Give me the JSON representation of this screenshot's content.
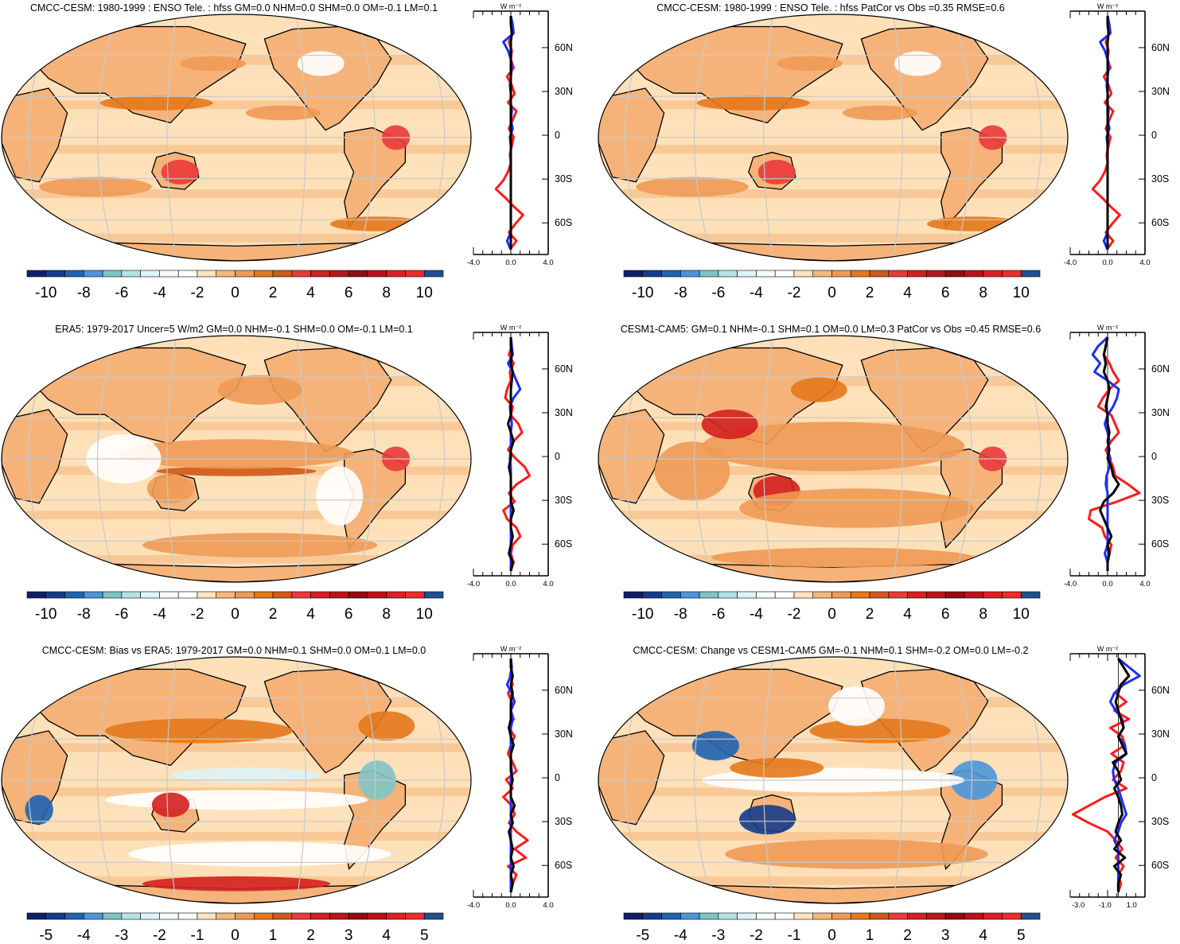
{
  "colors": {
    "palette": [
      "#0e1e6b",
      "#153c8c",
      "#1f63b3",
      "#4b96d9",
      "#7fc4c4",
      "#b3e2e6",
      "#def3f5",
      "#f5fbfd",
      "#ffffff",
      "#fde4c0",
      "#f4b77c",
      "#ee9a55",
      "#e4781c",
      "#cf5a1a",
      "#ea3a3a",
      "#d42020",
      "#b8161c",
      "#920c12",
      "#c0101a",
      "#e01e26",
      "#f02a2a",
      "#1f4f8f"
    ],
    "ocean_base": "#fde0b8",
    "land_base": "#f5b37a",
    "coast": "#000000",
    "grid": "#c8c8c8",
    "line_red": "#ff1a1a",
    "line_blue": "#1a2eff",
    "line_black": "#000000"
  },
  "panels": [
    {
      "title": "CMCC-CESM: 1980-1999 : ENSO Tele. : hfss GM=0.0 NHM=0.0 SHM=0.0 OM=-0.1 LM=0.1",
      "colorbar_labels": [
        "-10",
        "-8",
        "-6",
        "-4",
        "-2",
        "0",
        "2",
        "4",
        "6",
        "8",
        "10"
      ],
      "profile": {
        "unit": "W m⁻²",
        "x_ticks": [
          "-4.0",
          "0.0",
          "4.0"
        ],
        "xlim": [
          -4,
          4
        ],
        "y_ticks": [
          "60N",
          "30N",
          "0",
          "30S",
          "60S"
        ],
        "series": {
          "red": [
            0.0,
            0.1,
            0.2,
            -0.2,
            0.1,
            0.0,
            0.3,
            -0.4,
            0.1,
            0.4,
            -0.3,
            0.6,
            0.2,
            -0.2,
            0.3,
            0.1,
            -0.1,
            0.0,
            -0.3,
            -0.8,
            -1.6,
            -0.6,
            0.3,
            1.3,
            0.5,
            -0.2,
            0.6,
            -0.1
          ],
          "blue": [
            0.0,
            0.2,
            0.3,
            -0.8,
            -0.3,
            0.0,
            0.1,
            0.0,
            -0.1,
            0.0,
            0.0,
            0.1,
            0.0,
            0.2,
            -0.1,
            0.0,
            0.0,
            0.0,
            0.0,
            0.0,
            0.0,
            0.0,
            0.0,
            0.0,
            0.0,
            0.0,
            -0.4,
            0.0
          ],
          "black": [
            0.0,
            0.0,
            0.1,
            0.0,
            0.0,
            0.0,
            0.0,
            0.0,
            0.0,
            0.0,
            0.0,
            0.0,
            0.0,
            0.0,
            0.0,
            0.0,
            0.0,
            0.0,
            0.0,
            0.0,
            0.0,
            0.0,
            0.0,
            0.0,
            0.0,
            0.0,
            0.0,
            0.0
          ]
        }
      }
    },
    {
      "title": "CMCC-CESM: 1980-1999 : ENSO Tele. : hfss PatCor vs Obs =0.35 RMSE=0.6",
      "colorbar_labels": [
        "-10",
        "-8",
        "-6",
        "-4",
        "-2",
        "0",
        "2",
        "4",
        "6",
        "8",
        "10"
      ],
      "profile": {
        "unit": "W m⁻²",
        "x_ticks": [
          "-4.0",
          "0.0",
          "4.0"
        ],
        "xlim": [
          -4,
          4
        ],
        "y_ticks": [
          "60N",
          "30N",
          "0",
          "30S",
          "60S"
        ],
        "series": {
          "red": [
            0.0,
            0.1,
            0.2,
            -0.2,
            0.1,
            0.0,
            0.3,
            -0.4,
            0.1,
            0.4,
            -0.3,
            0.6,
            0.2,
            -0.2,
            0.3,
            0.1,
            -0.1,
            0.0,
            -0.3,
            -0.8,
            -1.6,
            -0.6,
            0.3,
            1.3,
            0.5,
            -0.2,
            0.6,
            -0.1
          ],
          "blue": [
            0.0,
            0.2,
            0.3,
            -0.8,
            -0.3,
            0.0,
            0.1,
            0.0,
            -0.1,
            0.0,
            0.0,
            0.1,
            0.0,
            0.2,
            -0.1,
            0.0,
            0.0,
            0.0,
            0.0,
            0.0,
            0.0,
            0.0,
            0.0,
            0.0,
            0.0,
            0.0,
            -0.4,
            0.0
          ],
          "black": [
            0.0,
            0.0,
            0.1,
            0.0,
            0.0,
            0.0,
            0.0,
            0.0,
            0.0,
            0.0,
            0.0,
            0.0,
            0.0,
            0.0,
            0.0,
            0.0,
            0.0,
            0.0,
            0.0,
            0.0,
            0.0,
            0.0,
            0.0,
            0.0,
            0.0,
            0.0,
            0.0,
            0.0
          ]
        }
      }
    },
    {
      "title": "ERA5: 1979-2017 Uncer=5 W/m2 GM=0.0 NHM=-0.1 SHM=0.0 OM=-0.1 LM=0.1",
      "colorbar_labels": [
        "-10",
        "-8",
        "-6",
        "-4",
        "-2",
        "0",
        "2",
        "4",
        "6",
        "8",
        "10"
      ],
      "profile": {
        "unit": "W m⁻²",
        "x_ticks": [
          "-4.0",
          "0.0",
          "4.0"
        ],
        "xlim": [
          -4,
          4
        ],
        "y_ticks": [
          "60N",
          "30N",
          "0",
          "30S",
          "60S"
        ],
        "series": {
          "red": [
            0.0,
            0.1,
            -0.2,
            0.3,
            -0.1,
            0.0,
            -0.4,
            -0.6,
            0.2,
            0.0,
            0.8,
            1.2,
            0.3,
            -0.3,
            0.5,
            1.5,
            2.0,
            0.6,
            -0.2,
            0.4,
            -0.8,
            -0.4,
            0.6,
            1.0,
            0.2,
            0.0,
            0.3,
            0.0
          ],
          "blue": [
            0.0,
            0.1,
            0.2,
            -0.3,
            0.2,
            0.6,
            1.0,
            0.3,
            -0.1,
            0.0,
            0.1,
            0.0,
            0.0,
            0.0,
            -0.1,
            0.0,
            0.0,
            0.0,
            0.0,
            0.0,
            0.0,
            0.0,
            0.0,
            0.0,
            0.0,
            0.0,
            0.0,
            0.0
          ],
          "black": [
            0.0,
            0.0,
            0.1,
            0.0,
            0.2,
            0.1,
            0.0,
            0.0,
            0.0,
            0.0,
            -0.3,
            0.0,
            0.3,
            0.0,
            0.0,
            -0.2,
            0.0,
            0.0,
            0.0,
            0.0,
            0.3,
            0.0,
            0.0,
            0.2,
            0.0,
            -0.2,
            0.2,
            0.0
          ]
        }
      }
    },
    {
      "title": "CESM1-CAM5: GM=0.1 NHM=-0.1 SHM=0.1 OM=0.0 LM=0.3 PatCor vs Obs =0.45 RMSE=0.6",
      "colorbar_labels": [
        "-10",
        "-8",
        "-6",
        "-4",
        "-2",
        "0",
        "2",
        "4",
        "6",
        "8",
        "10"
      ],
      "profile": {
        "unit": "W m⁻²",
        "x_ticks": [
          "-4.0",
          "0.0",
          "4.0"
        ],
        "xlim": [
          -4,
          4
        ],
        "y_ticks": [
          "60N",
          "30N",
          "0",
          "30S",
          "60S"
        ],
        "series": {
          "red": [
            0.0,
            -0.2,
            -0.4,
            0.2,
            0.6,
            1.2,
            0.2,
            -0.5,
            -1.0,
            0.4,
            0.8,
            1.2,
            0.4,
            -0.2,
            0.2,
            0.6,
            0.8,
            2.2,
            3.4,
            1.0,
            -1.8,
            -2.0,
            -0.6,
            -0.3,
            0.4,
            0.2,
            0.0,
            0.0
          ],
          "blue": [
            0.0,
            -1.0,
            -1.6,
            -0.8,
            -1.4,
            0.0,
            1.2,
            1.0,
            0.6,
            0.0,
            -0.3,
            0.0,
            0.2,
            0.0,
            0.3,
            0.2,
            -0.1,
            -0.2,
            0.0,
            0.0,
            0.0,
            0.0,
            0.0,
            0.0,
            0.0,
            -0.3,
            0.0,
            0.0
          ],
          "black": [
            0.0,
            -0.2,
            -0.4,
            -0.2,
            -0.4,
            0.0,
            0.2,
            0.0,
            -0.2,
            0.0,
            0.0,
            0.2,
            0.0,
            0.2,
            0.0,
            0.4,
            0.6,
            1.2,
            0.6,
            -0.4,
            -0.8,
            -0.4,
            0.0,
            0.4,
            0.0,
            0.2,
            0.0,
            0.0
          ]
        }
      }
    },
    {
      "title": "CMCC-CESM: Bias vs ERA5: 1979-2017 GM=0.0 NHM=0.1 SHM=0.0 OM=0.1 LM=0.0",
      "colorbar_labels": [
        "-5",
        "-4",
        "-3",
        "-2",
        "-1",
        "0",
        "1",
        "2",
        "3",
        "4",
        "5"
      ],
      "profile": {
        "unit": "W m⁻²",
        "x_ticks": [
          "-4.0",
          "0.0",
          "4.0"
        ],
        "xlim": [
          -4,
          4
        ],
        "y_ticks": [
          "60N",
          "30N",
          "0",
          "30S",
          "60S"
        ],
        "series": {
          "red": [
            0.0,
            0.1,
            -0.1,
            0.2,
            -0.3,
            0.1,
            0.0,
            0.3,
            -0.2,
            0.4,
            0.0,
            -0.3,
            0.2,
            0.6,
            -0.5,
            0.2,
            -0.8,
            0.1,
            0.4,
            -0.2,
            0.6,
            1.8,
            0.4,
            1.6,
            -0.3,
            0.6,
            0.2,
            0.0
          ],
          "blue": [
            0.0,
            0.1,
            0.0,
            -0.4,
            0.1,
            0.4,
            0.0,
            0.2,
            0.0,
            0.0,
            0.0,
            0.0,
            0.0,
            0.1,
            0.0,
            0.0,
            0.0,
            0.0,
            0.0,
            0.0,
            0.0,
            0.0,
            0.0,
            0.0,
            0.0,
            0.0,
            0.0,
            0.0
          ],
          "black": [
            0.0,
            0.0,
            0.2,
            0.0,
            0.2,
            0.0,
            0.0,
            0.0,
            -0.2,
            0.0,
            0.3,
            0.0,
            0.0,
            0.0,
            0.2,
            0.0,
            0.0,
            0.4,
            0.0,
            0.2,
            -0.2,
            0.0,
            0.2,
            0.0,
            0.3,
            0.0,
            0.2,
            0.0
          ]
        }
      }
    },
    {
      "title": "CMCC-CESM: Change vs CESM1-CAM5 GM=-0.1 NHM=0.1 SHM=-0.2 OM=0.0 LM=-0.2",
      "colorbar_labels": [
        "-5",
        "-4",
        "-3",
        "-2",
        "-1",
        "0",
        "1",
        "2",
        "3",
        "4",
        "5"
      ],
      "profile": {
        "unit": "W m⁻²",
        "x_ticks": [
          "-3.0",
          "-1.0",
          "1.0"
        ],
        "xlim": [
          -3.6,
          2.0
        ],
        "y_ticks": [
          "60N",
          "30N",
          "0",
          "30S",
          "60S"
        ],
        "series": {
          "red": [
            0.0,
            0.4,
            0.8,
            0.2,
            -0.2,
            0.6,
            -0.3,
            0.8,
            -0.6,
            0.3,
            0.5,
            -0.5,
            0.4,
            0.2,
            -0.4,
            0.6,
            -1.0,
            -2.2,
            -3.4,
            -2.2,
            -0.8,
            -0.2,
            0.3,
            -0.2,
            0.4,
            0.0,
            0.2,
            0.0
          ],
          "blue": [
            0.0,
            0.8,
            1.6,
            0.4,
            -0.3,
            -0.6,
            -0.2,
            0.3,
            0.4,
            0.0,
            0.5,
            0.6,
            -0.2,
            -0.4,
            -0.3,
            0.0,
            0.2,
            0.4,
            0.6,
            0.2,
            0.0,
            -0.3,
            0.0,
            0.0,
            0.0,
            0.0,
            0.0,
            0.0
          ],
          "black": [
            0.0,
            0.4,
            0.8,
            0.2,
            0.0,
            -0.2,
            0.0,
            0.2,
            0.4,
            0.0,
            0.3,
            0.6,
            -0.4,
            0.0,
            0.2,
            -0.3,
            0.0,
            0.2,
            0.3,
            0.0,
            -0.2,
            0.2,
            -0.3,
            0.5,
            -0.3,
            0.2,
            0.0,
            0.0
          ]
        }
      }
    }
  ],
  "chart_data": [
    {
      "type": "heatmap",
      "title": "CMCC-CESM: 1980-1999 : ENSO Tele. : hfss GM=0.0 NHM=0.0 SHM=0.0 OM=-0.1 LM=0.1",
      "colorbar_range": [
        -10,
        10
      ]
    },
    {
      "type": "line",
      "xlim": [
        -4,
        4
      ],
      "y_ticks": [
        "60N",
        "30N",
        "0",
        "30S",
        "60S"
      ]
    },
    {
      "type": "heatmap",
      "title": "CMCC-CESM: 1980-1999 : ENSO Tele. : hfss PatCor vs Obs =0.35 RMSE=0.6",
      "colorbar_range": [
        -10,
        10
      ]
    },
    {
      "type": "line",
      "xlim": [
        -4,
        4
      ],
      "y_ticks": [
        "60N",
        "30N",
        "0",
        "30S",
        "60S"
      ]
    },
    {
      "type": "heatmap",
      "title": "ERA5: 1979-2017 Uncer=5 W/m2 GM=0.0 NHM=-0.1 SHM=0.0 OM=-0.1 LM=0.1",
      "colorbar_range": [
        -10,
        10
      ]
    },
    {
      "type": "line",
      "xlim": [
        -4,
        4
      ],
      "y_ticks": [
        "60N",
        "30N",
        "0",
        "30S",
        "60S"
      ]
    },
    {
      "type": "heatmap",
      "title": "CESM1-CAM5: GM=0.1 NHM=-0.1 SHM=0.1 OM=0.0 LM=0.3 PatCor vs Obs =0.45 RMSE=0.6",
      "colorbar_range": [
        -10,
        10
      ]
    },
    {
      "type": "line",
      "xlim": [
        -4,
        4
      ],
      "y_ticks": [
        "60N",
        "30N",
        "0",
        "30S",
        "60S"
      ]
    },
    {
      "type": "heatmap",
      "title": "CMCC-CESM: Bias vs ERA5: 1979-2017 GM=0.0 NHM=0.1 SHM=0.0 OM=0.1 LM=0.0",
      "colorbar_range": [
        -5,
        5
      ]
    },
    {
      "type": "line",
      "xlim": [
        -4,
        4
      ],
      "y_ticks": [
        "60N",
        "30N",
        "0",
        "30S",
        "60S"
      ]
    },
    {
      "type": "heatmap",
      "title": "CMCC-CESM: Change vs CESM1-CAM5 GM=-0.1 NHM=0.1 SHM=-0.2 OM=0.0 LM=-0.2",
      "colorbar_range": [
        -5,
        5
      ]
    },
    {
      "type": "line",
      "xlim": [
        -3.6,
        2.0
      ],
      "y_ticks": [
        "60N",
        "30N",
        "0",
        "30S",
        "60S"
      ]
    }
  ]
}
